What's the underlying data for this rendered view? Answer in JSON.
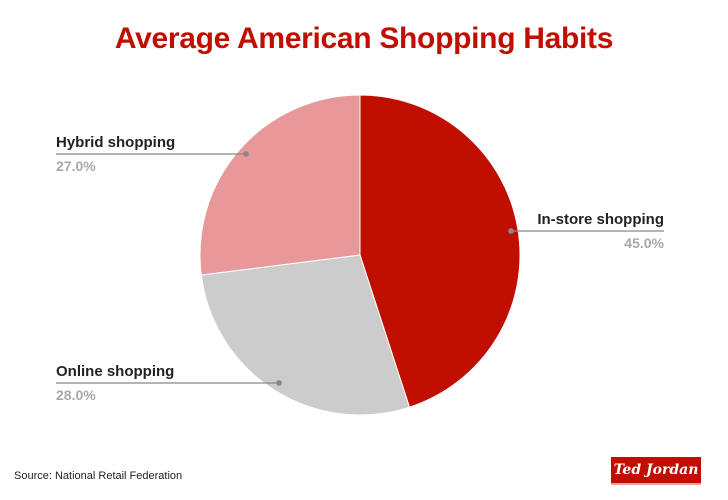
{
  "title": "Average American Shopping Habits",
  "source": "Source: National Retail Federation",
  "logo": "Ted Jordan",
  "slices": [
    {
      "label": "In-store shopping",
      "pct": "45.0%",
      "color": "#c00f00"
    },
    {
      "label": "Online shopping",
      "pct": "28.0%",
      "color": "#cccccc"
    },
    {
      "label": "Hybrid shopping",
      "pct": "27.0%",
      "color": "#e89898"
    }
  ],
  "chart_data": {
    "type": "pie",
    "title": "Average American Shopping Habits",
    "categories": [
      "In-store shopping",
      "Online shopping",
      "Hybrid shopping"
    ],
    "values": [
      45.0,
      28.0,
      27.0
    ],
    "unit": "%",
    "colors": [
      "#c00f00",
      "#cccccc",
      "#e89898"
    ],
    "start_angle": "12 o'clock, clockwise",
    "labels": "outside with leader lines",
    "source": "National Retail Federation"
  }
}
